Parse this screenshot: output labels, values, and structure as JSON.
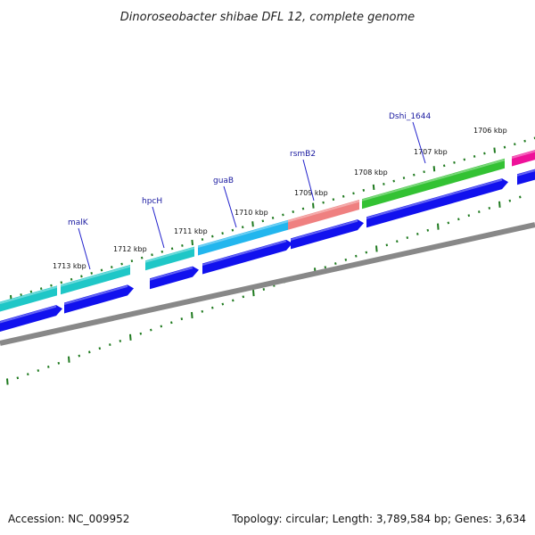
{
  "title": "Dinoroseobacter shibae DFL 12, complete genome",
  "footer": {
    "accession": "Accession: NC_009952",
    "summary": "Topology: circular; Length: 3,789,584 bp; Genes: 3,634"
  },
  "kbp_labels": [
    "1713 kbp",
    "1712 kbp",
    "1711 kbp",
    "1710 kbp",
    "1709 kbp",
    "1708 kbp",
    "1707 kbp",
    "1706 kbp"
  ],
  "gene_labels": [
    "malK",
    "hpcH",
    "guaB",
    "rsmB2",
    "Dshi_1644"
  ],
  "colors": {
    "teal": "#1fc7c7",
    "sky": "#22b6ee",
    "salmon": "#ef8080",
    "green": "#33c233",
    "magenta": "#ee1199",
    "blue": "#1111ee",
    "backbone": "#888888",
    "ticks": "#1f7a1f",
    "label_line": "#2222cc"
  }
}
